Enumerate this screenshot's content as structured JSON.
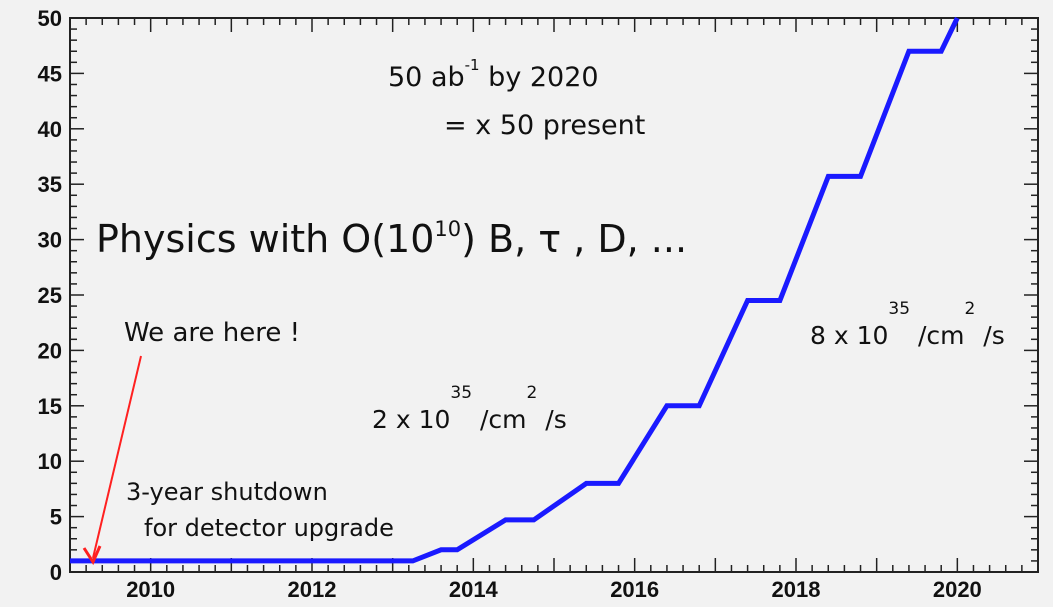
{
  "chart_data": {
    "type": "line",
    "title": "",
    "xlabel": "",
    "ylabel": "",
    "xlim": [
      2009,
      2021
    ],
    "ylim": [
      0,
      50
    ],
    "grid": false,
    "x_ticks": [
      2010,
      2012,
      2014,
      2016,
      2018,
      2020
    ],
    "x_tick_labels": [
      "2010",
      "2012",
      "2014",
      "2016",
      "2018",
      "2020"
    ],
    "y_ticks": [
      0,
      5,
      10,
      15,
      20,
      25,
      30,
      35,
      40,
      45,
      50
    ],
    "y_tick_labels": [
      "0",
      "5",
      "10",
      "15",
      "20",
      "25",
      "30",
      "35",
      "40",
      "45",
      "50"
    ],
    "series": [
      {
        "color": "#1a1aff",
        "points": [
          [
            2009.0,
            1.0
          ],
          [
            2013.25,
            1.0
          ],
          [
            2013.6,
            2.0
          ],
          [
            2013.8,
            2.0
          ],
          [
            2014.4,
            4.7
          ],
          [
            2014.75,
            4.7
          ],
          [
            2015.4,
            8.0
          ],
          [
            2015.8,
            8.0
          ],
          [
            2016.4,
            15.0
          ],
          [
            2016.8,
            15.0
          ],
          [
            2017.4,
            24.5
          ],
          [
            2017.8,
            24.5
          ],
          [
            2018.4,
            35.7
          ],
          [
            2018.8,
            35.7
          ],
          [
            2019.4,
            47.0
          ],
          [
            2019.8,
            47.0
          ],
          [
            2020.0,
            50.0
          ]
        ]
      }
    ],
    "annotations": {
      "goal_line1": {
        "main": "50 ab",
        "sup": "-1",
        "tail": " by 2020"
      },
      "goal_line2": "= x 50 present",
      "physics": {
        "pre": "Physics with O(10",
        "sup": "10",
        "post": ") B, τ , D, ..."
      },
      "here": "We are here !",
      "shutdown_line1": "3-year shutdown",
      "shutdown_line2": "for detector upgrade",
      "lumi_low": {
        "pre": "2 x 10",
        "exp": "35",
        "mid": " /cm",
        "exp2": "2",
        "post": " /s"
      },
      "lumi_high": {
        "pre": "8 x 10",
        "exp": "35",
        "mid": " /cm",
        "exp2": "2",
        "post": " /s"
      }
    },
    "colors": {
      "line": "#1a1aff",
      "here": "#ff2020",
      "text": "#111111",
      "background": "#f2f2f2"
    }
  }
}
